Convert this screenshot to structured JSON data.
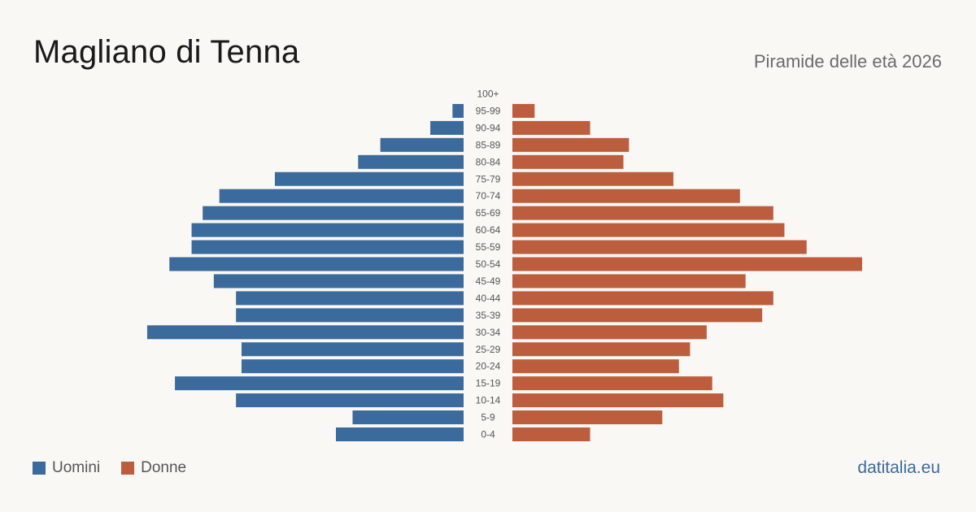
{
  "header": {
    "title": "Magliano di Tenna",
    "subtitle": "Piramide delle età 2026"
  },
  "legend": {
    "men_label": "Uomini",
    "women_label": "Donne"
  },
  "brand": "datitalia.eu",
  "colors": {
    "men": "#3b6a9c",
    "women": "#bc5e3d",
    "label": "#555555"
  },
  "chart_data": {
    "type": "bar",
    "orientation": "horizontal-pyramid",
    "categories": [
      "100+",
      "95-99",
      "90-94",
      "85-89",
      "80-84",
      "75-79",
      "70-74",
      "65-69",
      "60-64",
      "55-59",
      "50-54",
      "45-49",
      "40-44",
      "35-39",
      "30-34",
      "25-29",
      "20-24",
      "15-19",
      "10-14",
      "5-9",
      "0-4"
    ],
    "series": [
      {
        "name": "Uomini",
        "values": [
          0,
          2,
          6,
          15,
          19,
          34,
          44,
          47,
          49,
          49,
          53,
          45,
          41,
          41,
          57,
          40,
          40,
          52,
          41,
          20,
          23
        ]
      },
      {
        "name": "Donne",
        "values": [
          0,
          4,
          14,
          21,
          20,
          29,
          41,
          47,
          49,
          53,
          63,
          42,
          47,
          45,
          35,
          32,
          30,
          36,
          38,
          27,
          14
        ]
      }
    ],
    "grid": false,
    "legend_position": "bottom-left"
  }
}
